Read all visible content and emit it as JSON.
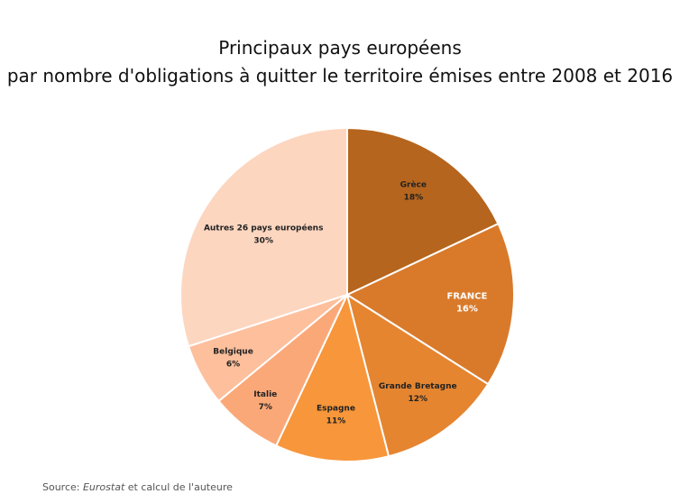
{
  "chart_data": {
    "type": "pie",
    "title": [
      "Principaux pays européens",
      "par nombre d'obligations à quitter le territoire émises entre 2008 et 2016"
    ],
    "slices": [
      {
        "label": "Grèce",
        "value": 18,
        "value_label": "18%",
        "color": "#b5651d"
      },
      {
        "label": "FRANCE",
        "value": 16,
        "value_label": "16%",
        "color": "#d97a2b"
      },
      {
        "label": "Grande Bretagne",
        "value": 12,
        "value_label": "12%",
        "color": "#e58530"
      },
      {
        "label": "Espagne",
        "value": 11,
        "value_label": "11%",
        "color": "#f7963a"
      },
      {
        "label": "Italie",
        "value": 7,
        "value_label": "7%",
        "color": "#fba878"
      },
      {
        "label": "Belgique",
        "value": 6,
        "value_label": "6%",
        "color": "#fdbf9c"
      },
      {
        "label": "Autres 26 pays européens",
        "value": 30,
        "value_label": "30%",
        "color": "#fdd6c0"
      }
    ],
    "start_angle_deg": 0,
    "direction": "clockwise"
  },
  "source": {
    "prefix": "Source: ",
    "emphasis": "Eurostat",
    "suffix": " et calcul de l'auteure"
  }
}
